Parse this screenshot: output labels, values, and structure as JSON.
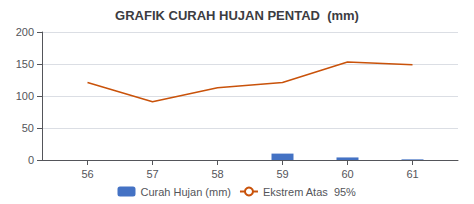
{
  "chart_data": {
    "type": "bar",
    "title": "GRAFIK CURAH HUJAN PENTAD  (mm)",
    "x": [
      56,
      57,
      58,
      59,
      60,
      61
    ],
    "xlim": [
      55.3,
      61.7
    ],
    "xticks": [
      56,
      57,
      58,
      59,
      60,
      61
    ],
    "ylim": [
      0,
      200
    ],
    "yticks": [
      0,
      50,
      100,
      150,
      200
    ],
    "grid": true,
    "legend": "bottom",
    "series": [
      {
        "name": "Curah Hujan (mm)",
        "type": "bar",
        "color": "#4472C4",
        "values": [
          0,
          0,
          0,
          10,
          4,
          1
        ]
      },
      {
        "name": "Ekstrem Atas  95%",
        "type": "line",
        "color": "#C9520A",
        "values": [
          121,
          91,
          113,
          121,
          153,
          149
        ]
      }
    ]
  }
}
